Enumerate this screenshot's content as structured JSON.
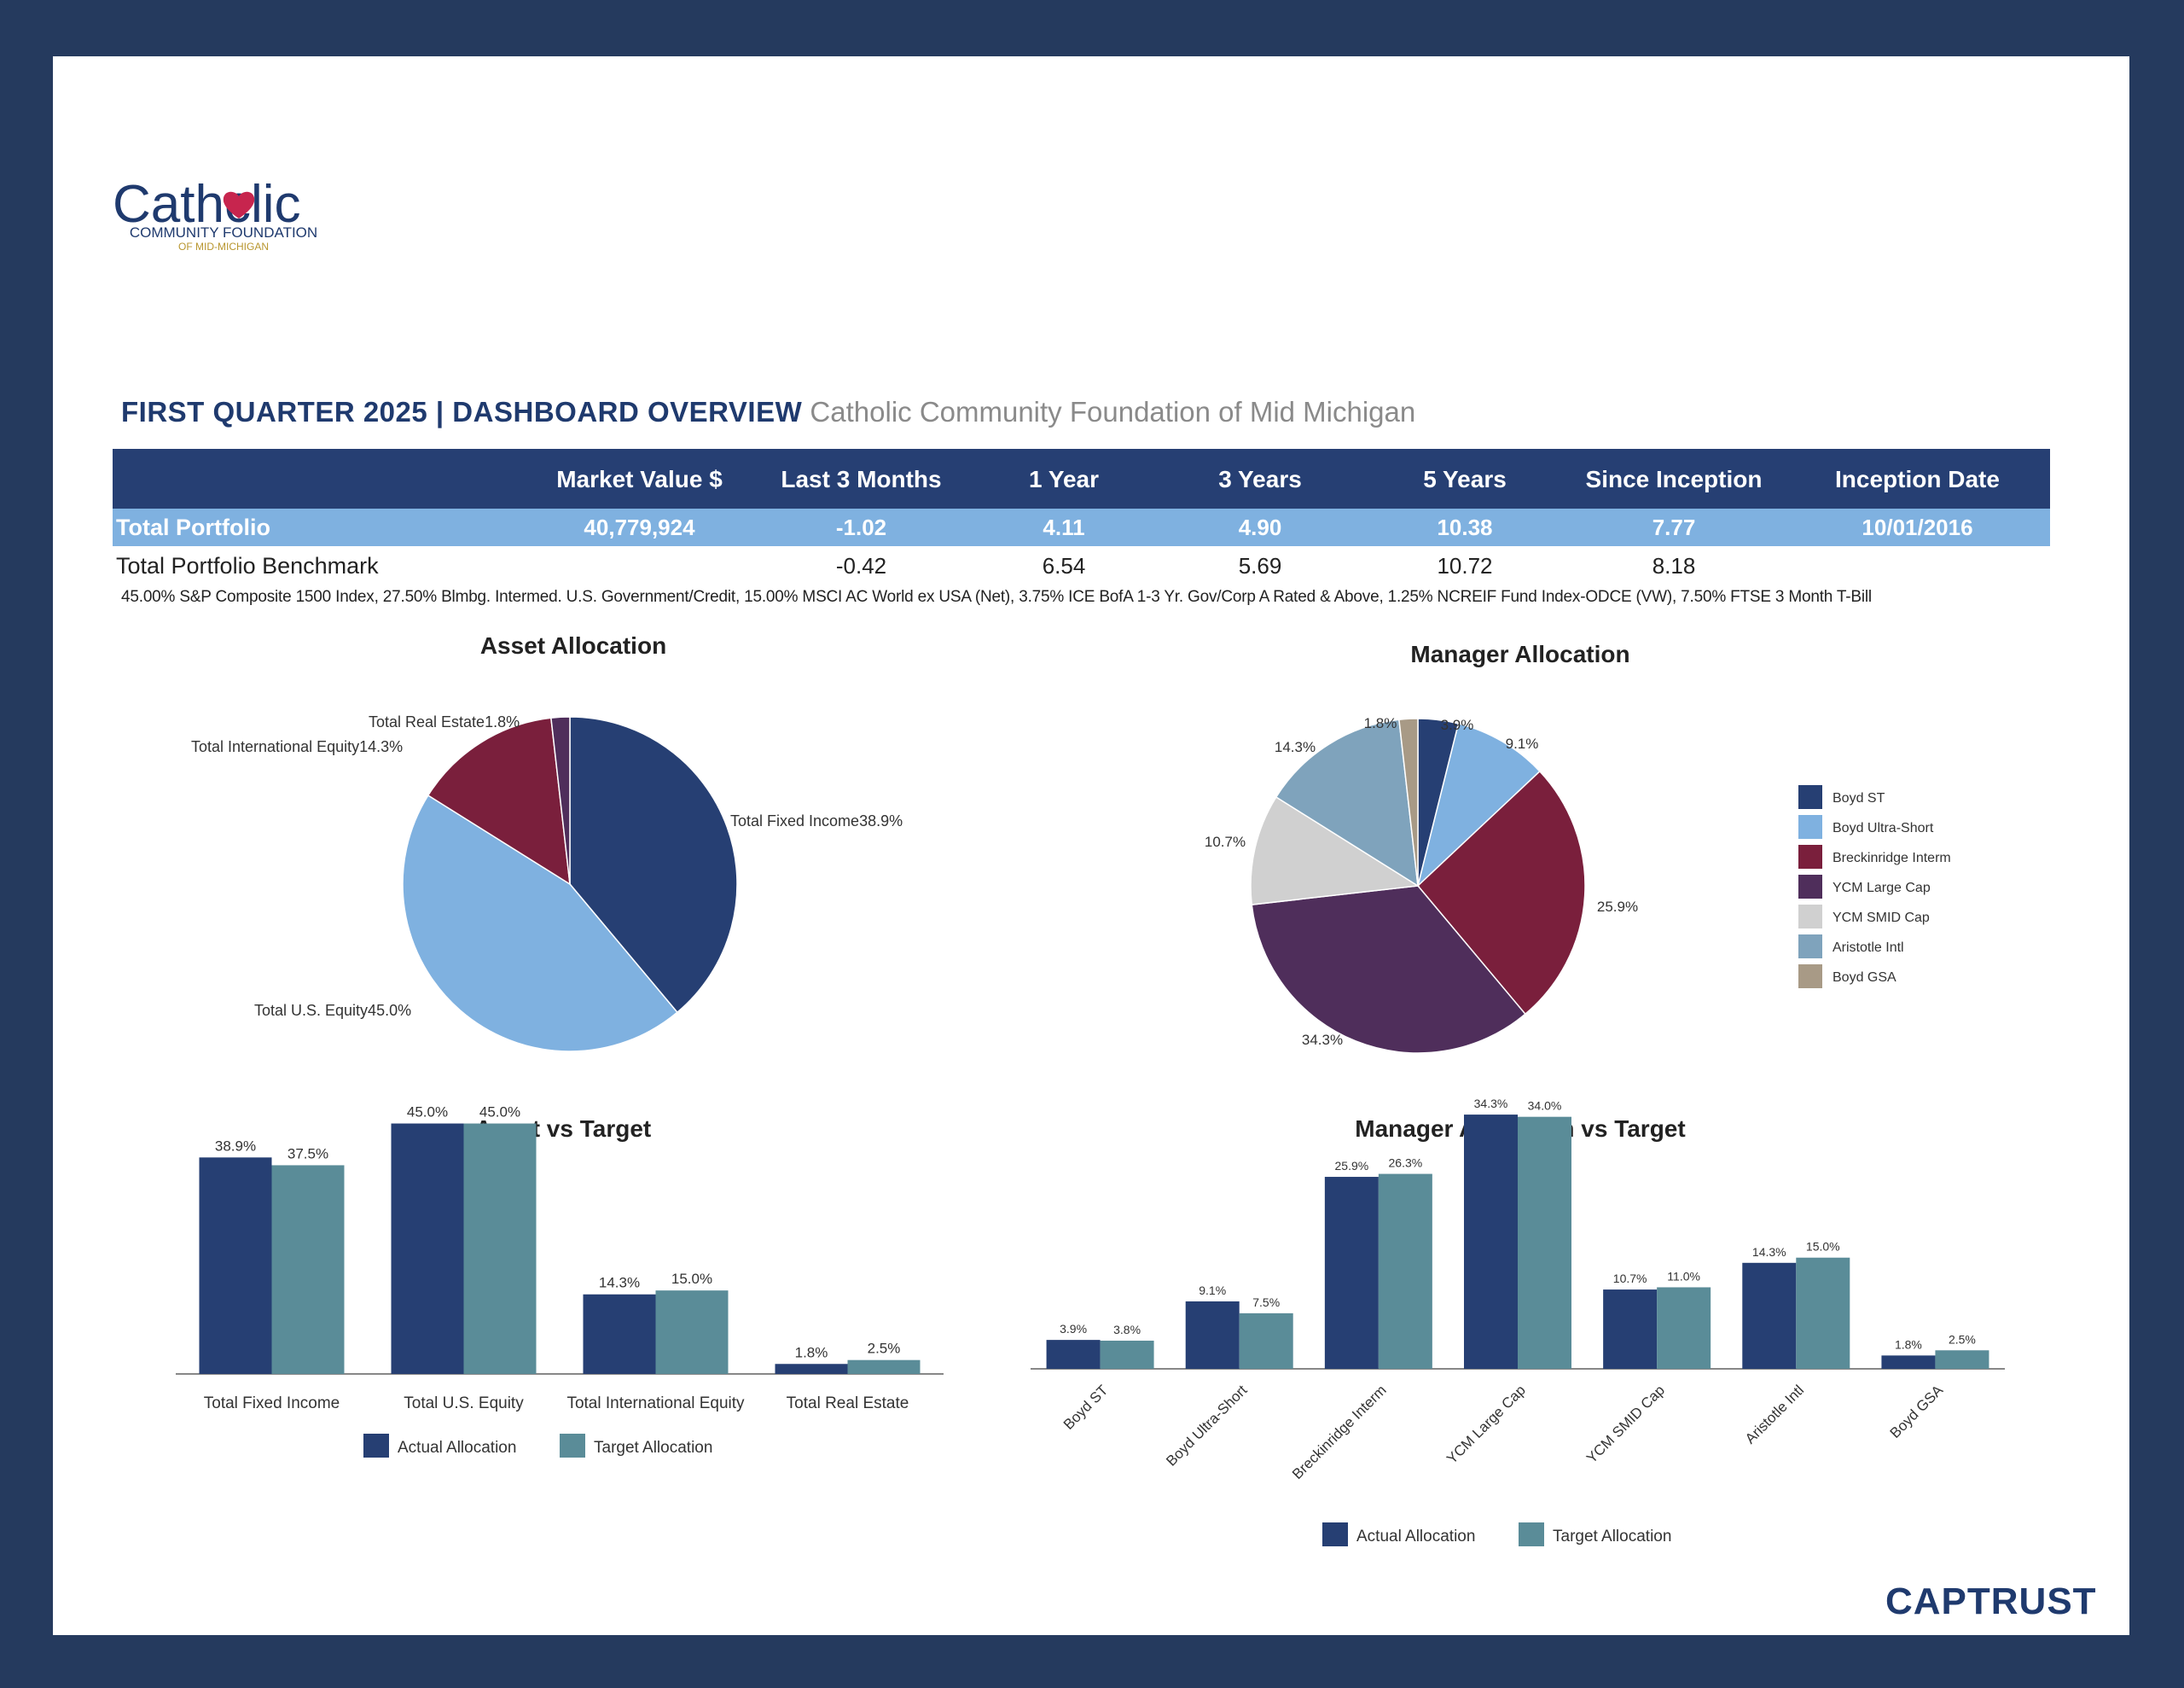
{
  "logo": {
    "word": "Catholic",
    "line1": "COMMUNITY FOUNDATION",
    "line2": "OF MID-MICHIGAN"
  },
  "header": {
    "title": "FIRST QUARTER 2025 | DASHBOARD OVERVIEW",
    "separator": "|",
    "subtitle": "Catholic Community Foundation of Mid Michigan"
  },
  "table": {
    "columns": [
      "",
      "Market Value $",
      "Last 3 Months",
      "1 Year",
      "3 Years",
      "5 Years",
      "Since Inception",
      "Inception Date"
    ],
    "rows": [
      {
        "label": "Total Portfolio",
        "cells": [
          "40,779,924",
          "-1.02",
          "4.11",
          "4.90",
          "10.38",
          "7.77",
          "10/01/2016"
        ]
      },
      {
        "label": "Total Portfolio Benchmark",
        "cells": [
          "",
          "-0.42",
          "6.54",
          "5.69",
          "10.72",
          "8.18",
          ""
        ]
      }
    ],
    "benchmark_note": "45.00% S&P Composite 1500 Index, 27.50% Blmbg. Intermed. U.S. Government/Credit, 15.00% MSCI AC World ex USA (Net), 3.75% ICE BofA 1-3 Yr. Gov/Corp A Rated & Above, 1.25% NCREIF Fund Index-ODCE (VW), 7.50% FTSE 3 Month T-Bill"
  },
  "colors": {
    "navy": "#263f73",
    "light_blue": "#7fb1e0",
    "maroon": "#7a1f3c",
    "plum": "#4f2e5b",
    "light_gray": "#d0d0d0",
    "slate": "#7fa3bc",
    "taupe": "#a89a86",
    "teal": "#5a8c98"
  },
  "chart_data": [
    {
      "type": "pie",
      "title": "Asset Allocation",
      "categories": [
        "Total Fixed Income",
        "Total U.S. Equity",
        "Total International Equity",
        "Total Real Estate"
      ],
      "values": [
        38.9,
        45.0,
        14.3,
        1.8
      ],
      "labels": [
        "Total Fixed Income38.9%",
        "Total U.S. Equity45.0%",
        "Total International Equity14.3%",
        "Total Real Estate1.8%"
      ],
      "colors": [
        "#263f73",
        "#7fb1e0",
        "#7a1f3c",
        "#4f2e5b"
      ]
    },
    {
      "type": "pie",
      "title": "Manager Allocation",
      "categories": [
        "Boyd ST",
        "Boyd Ultra-Short",
        "Breckinridge Interm",
        "YCM Large Cap",
        "YCM SMID Cap",
        "Aristotle Intl",
        "Boyd GSA"
      ],
      "values": [
        3.9,
        9.1,
        25.9,
        34.3,
        10.7,
        14.3,
        1.8
      ],
      "labels": [
        "3.9%",
        "9.1%",
        "25.9%",
        "34.3%",
        "10.7%",
        "14.3%",
        "1.8%"
      ],
      "colors": [
        "#263f73",
        "#7fb1e0",
        "#7a1f3c",
        "#4f2e5b",
        "#d0d0d0",
        "#7fa3bc",
        "#a89a86"
      ],
      "legend": "right"
    },
    {
      "type": "bar",
      "title": "Asset vs Target",
      "categories": [
        "Total Fixed Income",
        "Total U.S. Equity",
        "Total International Equity",
        "Total Real Estate"
      ],
      "series": [
        {
          "name": "Actual Allocation",
          "values": [
            38.9,
            45.0,
            14.3,
            1.8
          ],
          "labels": [
            "38.9%",
            "45.0%",
            "14.3%",
            "1.8%"
          ],
          "color": "#263f73"
        },
        {
          "name": "Target Allocation",
          "values": [
            37.5,
            45.0,
            15.0,
            2.5
          ],
          "labels": [
            "37.5%",
            "45.0%",
            "15.0%",
            "2.5%"
          ],
          "color": "#5a8c98"
        }
      ],
      "ylim": [
        0,
        46
      ],
      "legend": "bottom"
    },
    {
      "type": "bar",
      "title": "Manager Allocation vs Target",
      "categories": [
        "Boyd ST",
        "Boyd Ultra-Short",
        "Breckinridge Interm",
        "YCM Large Cap",
        "YCM SMID Cap",
        "Aristotle Intl",
        "Boyd GSA"
      ],
      "series": [
        {
          "name": "Actual Allocation",
          "values": [
            3.9,
            9.1,
            25.9,
            34.3,
            10.7,
            14.3,
            1.8
          ],
          "labels": [
            "3.9%",
            "9.1%",
            "25.9%",
            "34.3%",
            "10.7%",
            "14.3%",
            "1.8%"
          ],
          "color": "#263f73"
        },
        {
          "name": "Target Allocation",
          "values": [
            3.8,
            7.5,
            26.3,
            34.0,
            11.0,
            15.0,
            2.5
          ],
          "labels": [
            "3.8%",
            "7.5%",
            "26.3%",
            "34.0%",
            "11.0%",
            "15.0%",
            "2.5%"
          ],
          "color": "#5a8c98"
        }
      ],
      "ylim": [
        0,
        35
      ],
      "legend": "bottom"
    }
  ],
  "footer": {
    "brand": "CAPTRUST"
  }
}
